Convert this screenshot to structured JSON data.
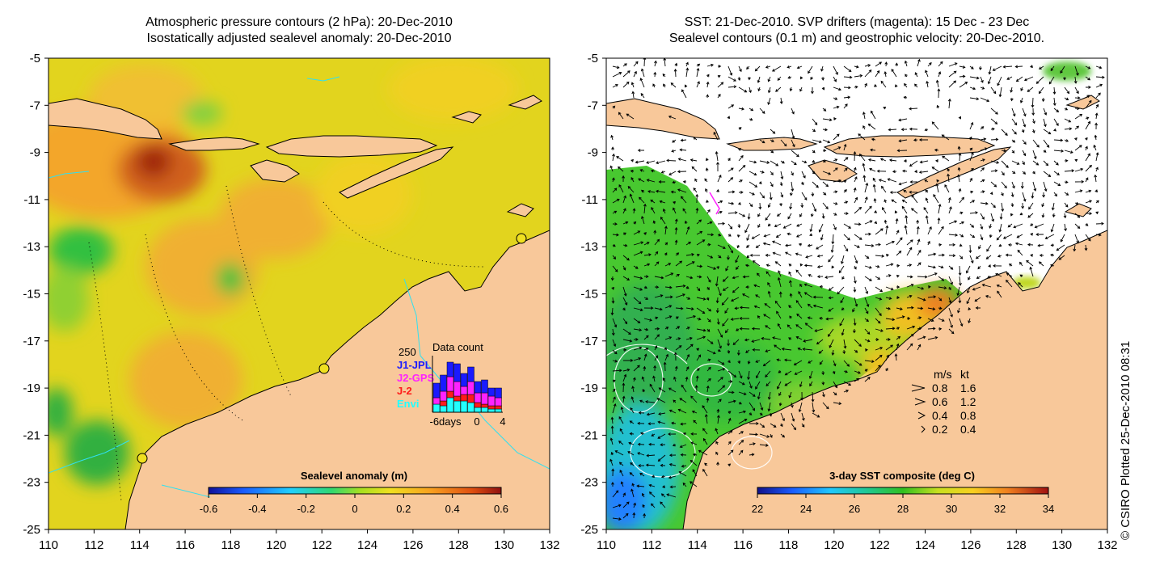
{
  "left_panel": {
    "title_line1": "Atmospheric pressure contours (2 hPa): 20-Dec-2010",
    "title_line2": "Isostatically adjusted sealevel anomaly: 20-Dec-2010",
    "colorbar_title": "Sealevel anomaly (m)",
    "colorbar_ticks": [
      "-0.6",
      "-0.4",
      "-0.2",
      "0",
      "0.2",
      "0.4",
      "0.6"
    ],
    "data_count": {
      "title": "Data count",
      "ymax_label": "250",
      "legend": [
        {
          "label": "J1-JPL",
          "color": "#1a1aff"
        },
        {
          "label": "J2-GPS",
          "color": "#ff22ff"
        },
        {
          "label": "J-2",
          "color": "#ff1a1a"
        },
        {
          "label": "Envi",
          "color": "#22ffff"
        }
      ],
      "x_labels": [
        "-6days",
        "0",
        "4"
      ]
    }
  },
  "right_panel": {
    "title_line1": "SST: 21-Dec-2010. SVP drifters (magenta): 15 Dec - 23 Dec",
    "title_line2": "Sealevel contours (0.1 m) and geostrophic velocity: 20-Dec-2010.",
    "colorbar_title": "3-day SST composite (deg C)",
    "colorbar_ticks": [
      "22",
      "24",
      "26",
      "28",
      "30",
      "32",
      "34"
    ],
    "speed_legend": {
      "header_ms": "m/s",
      "header_kt": "kt",
      "rows": [
        {
          "ms": "0.8",
          "kt": "1.6"
        },
        {
          "ms": "0.6",
          "kt": "1.2"
        },
        {
          "ms": "0.4",
          "kt": "0.8"
        },
        {
          "ms": "0.2",
          "kt": "0.4"
        }
      ]
    }
  },
  "axes": {
    "x_ticks": [
      "110",
      "112",
      "114",
      "116",
      "118",
      "120",
      "122",
      "124",
      "126",
      "128",
      "130",
      "132"
    ],
    "y_ticks": [
      "-5",
      "-7",
      "-9",
      "-11",
      "-13",
      "-15",
      "-17",
      "-19",
      "-21",
      "-23",
      "-25"
    ],
    "lon_range": [
      110,
      132
    ],
    "lat_range": [
      -25,
      -5
    ]
  },
  "plotted_label": "© CSIRO Plotted 25-Dec-2010 08:31",
  "colors": {
    "land": "#f8c89a",
    "ocean_anomaly": "#e8d820",
    "sst_warm": "#f09a20",
    "no_data": "#ffffff"
  }
}
